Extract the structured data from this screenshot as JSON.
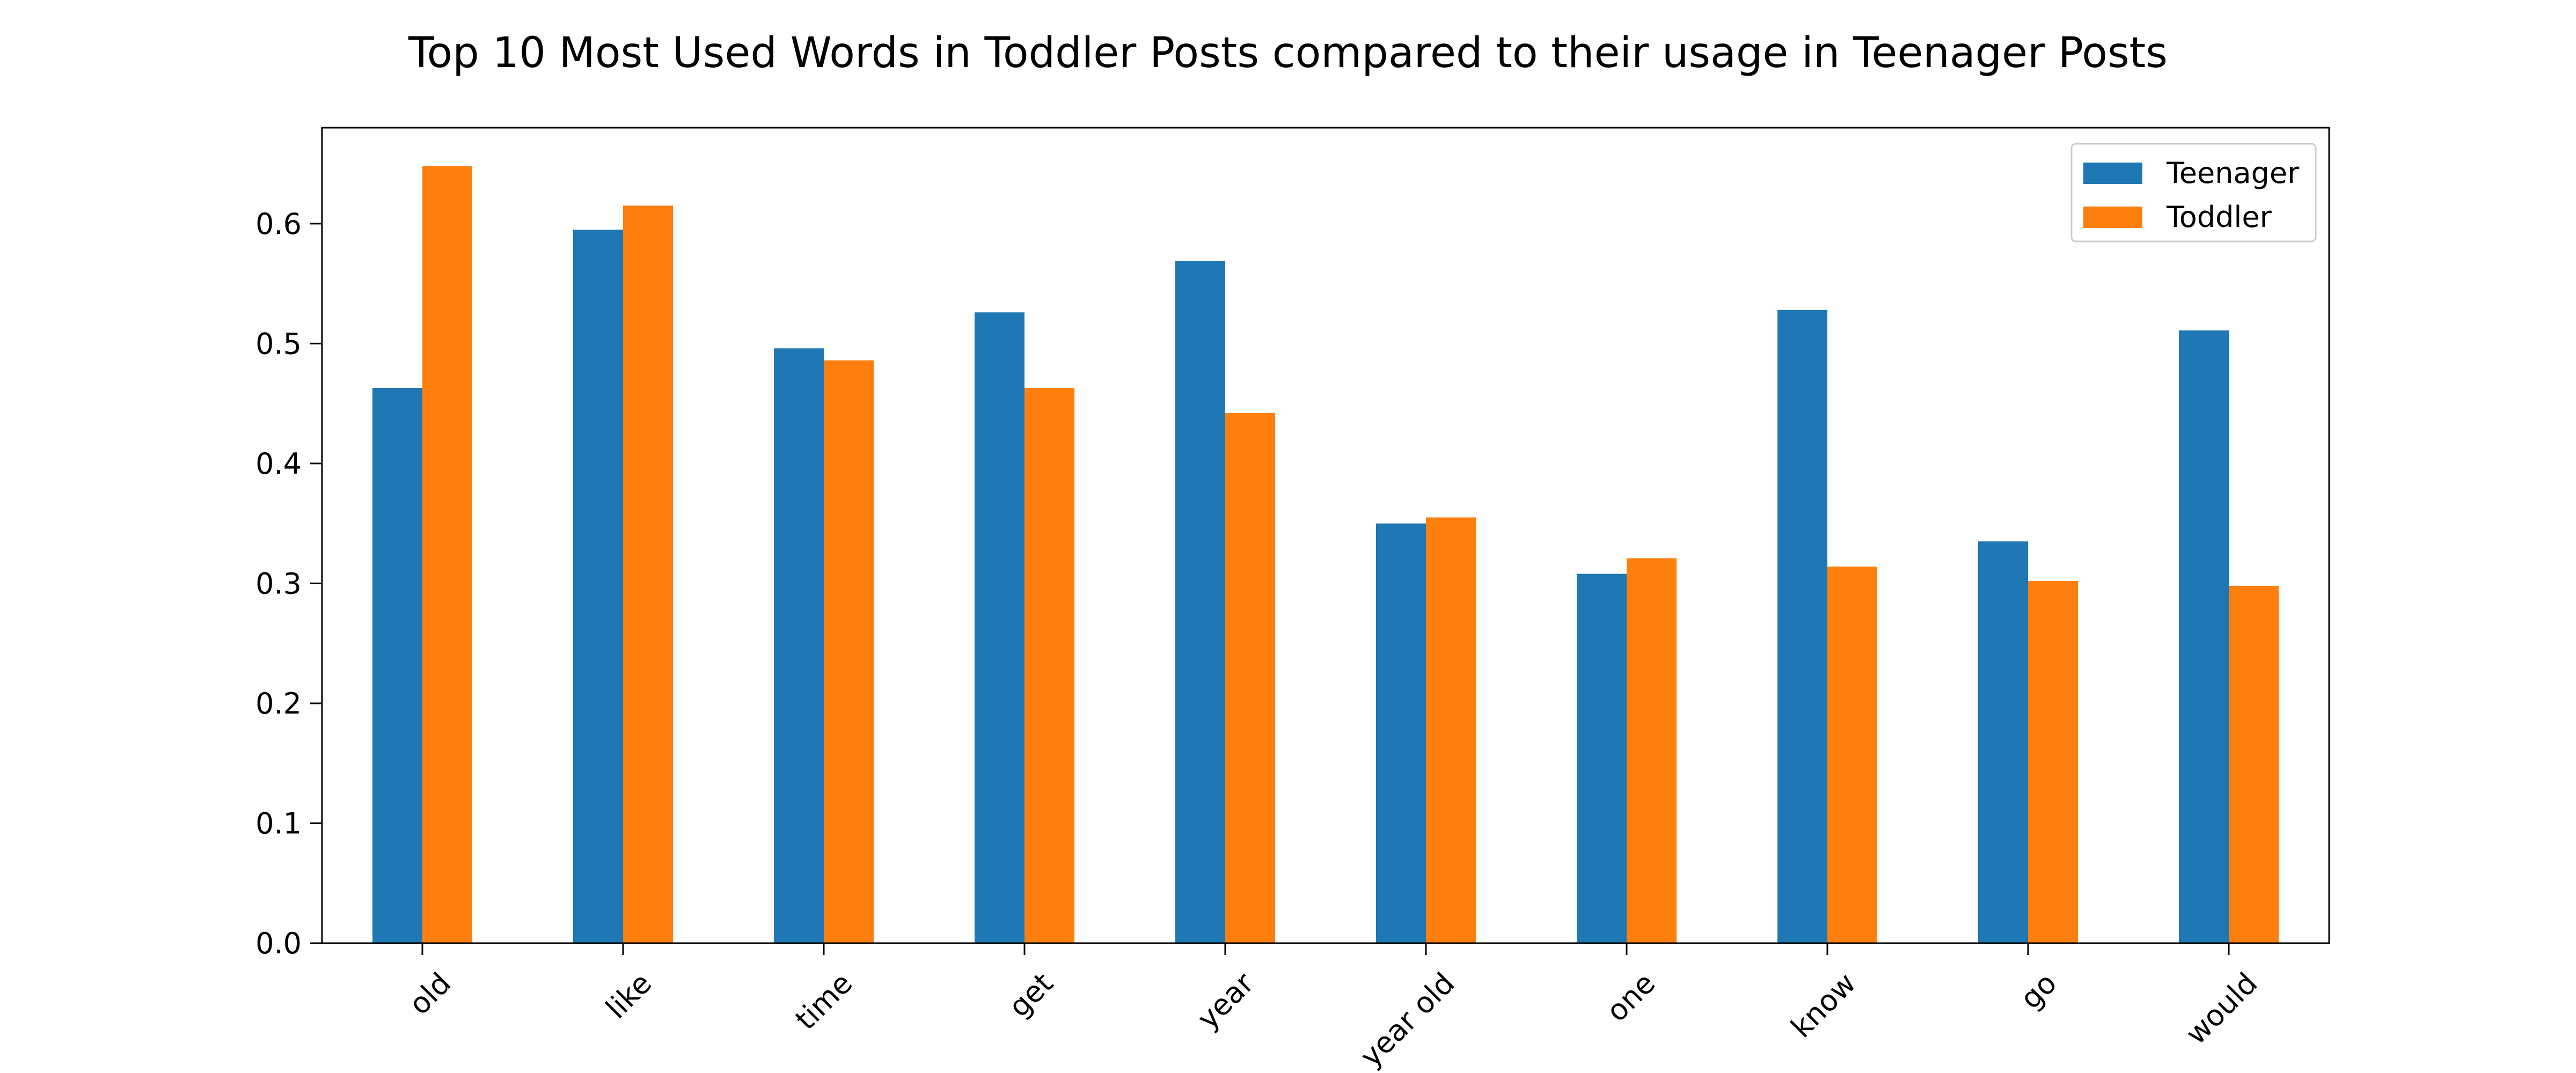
{
  "chart_data": {
    "type": "bar",
    "title": "Top 10 Most Used Words in Toddler Posts compared to their usage in Teenager Posts",
    "xlabel": "",
    "ylabel": "",
    "categories": [
      "old",
      "like",
      "time",
      "get",
      "year",
      "year old",
      "one",
      "know",
      "go",
      "would"
    ],
    "series": [
      {
        "name": "Teenager",
        "color": "#1f77b4",
        "values": [
          0.463,
          0.595,
          0.496,
          0.526,
          0.569,
          0.35,
          0.308,
          0.528,
          0.335,
          0.511
        ]
      },
      {
        "name": "Toddler",
        "color": "#ff7f0e",
        "values": [
          0.648,
          0.615,
          0.486,
          0.463,
          0.442,
          0.355,
          0.321,
          0.314,
          0.302,
          0.298
        ]
      }
    ],
    "ylim": [
      0,
      0.68
    ],
    "yticks": [
      "0.0",
      "0.1",
      "0.2",
      "0.3",
      "0.4",
      "0.5",
      "0.6"
    ],
    "tick_label_rotation_deg": 45,
    "legend_position": "upper right",
    "grid": false
  }
}
